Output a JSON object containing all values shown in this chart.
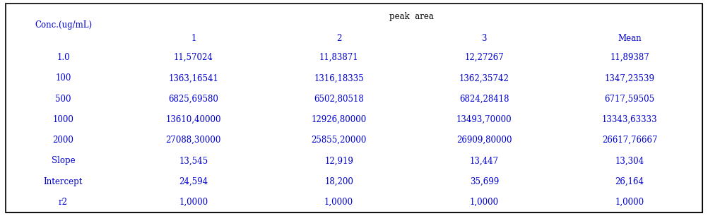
{
  "title": "peak  area",
  "col_header_1": "Conc.(ug/mL)",
  "col_header_2": [
    "1",
    "2",
    "3",
    "Mean"
  ],
  "rows": [
    [
      "1.0",
      "11,57024",
      "11,83871",
      "12,27267",
      "11,89387"
    ],
    [
      "100",
      "1363,16541",
      "1316,18335",
      "1362,35742",
      "1347,23539"
    ],
    [
      "500",
      "6825,69580",
      "6502,80518",
      "6824,28418",
      "6717,59505"
    ],
    [
      "1000",
      "13610,40000",
      "12926,80000",
      "13493,70000",
      "13343,63333"
    ],
    [
      "2000",
      "27088,30000",
      "25855,20000",
      "26909,80000",
      "26617,76667"
    ],
    [
      "Slope",
      "13,545",
      "12,919",
      "13,447",
      "13,304"
    ],
    [
      "Intercept",
      "24,594",
      "18,200",
      "35,699",
      "26,164"
    ],
    [
      "r2",
      "1,0000",
      "1,0000",
      "1,0000",
      "1,0000"
    ]
  ],
  "text_color": "#0000CD",
  "peak_area_color": "#000000",
  "border_color": "#000000",
  "font_size": 8.5,
  "header_font_size": 8.5,
  "fig_width": 10.02,
  "fig_height": 3.06,
  "dpi": 100
}
